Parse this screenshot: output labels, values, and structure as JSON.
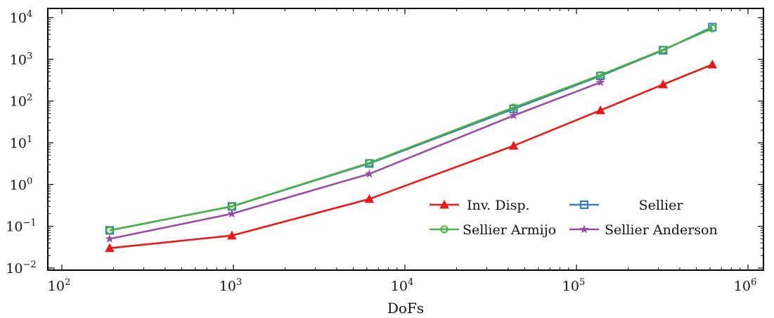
{
  "chart_data": {
    "type": "line",
    "xlabel": "DoFs",
    "ylabel": "",
    "xscale": "log",
    "yscale": "log",
    "xlim": [
      100,
      1000000
    ],
    "ylim": [
      0.01,
      10000
    ],
    "x_ticks": [
      {
        "base": "10",
        "exp": "2"
      },
      {
        "base": "10",
        "exp": "3"
      },
      {
        "base": "10",
        "exp": "4"
      },
      {
        "base": "10",
        "exp": "5"
      },
      {
        "base": "10",
        "exp": "6"
      }
    ],
    "y_ticks": [
      {
        "base": "10",
        "exp": "−2"
      },
      {
        "base": "10",
        "exp": "−1"
      },
      {
        "base": "10",
        "exp": "0"
      },
      {
        "base": "10",
        "exp": "1"
      },
      {
        "base": "10",
        "exp": "2"
      },
      {
        "base": "10",
        "exp": "3"
      },
      {
        "base": "10",
        "exp": "4"
      }
    ],
    "grid": false,
    "legend_position": "lower-right",
    "series": [
      {
        "name": "Inv. Disp.",
        "color": "#e41a1c",
        "marker": "triangle",
        "x": [
          190,
          980,
          6200,
          43000,
          138000,
          320000,
          620000
        ],
        "y": [
          0.03,
          0.06,
          0.45,
          8.5,
          60,
          250,
          750
        ]
      },
      {
        "name": "Sellier",
        "color": "#377eb8",
        "marker": "square",
        "x": [
          190,
          980,
          6200,
          43000,
          138000,
          320000,
          620000
        ],
        "y": [
          0.08,
          0.3,
          3.2,
          65,
          400,
          1650,
          5900
        ]
      },
      {
        "name": "Sellier Armijo",
        "color": "#4daf4a",
        "marker": "circle",
        "x": [
          190,
          980,
          6200,
          43000,
          138000,
          320000,
          620000
        ],
        "y": [
          0.08,
          0.3,
          3.3,
          70,
          420,
          1700,
          5500
        ]
      },
      {
        "name": "Sellier Anderson",
        "color": "#984ea3",
        "marker": "star",
        "x": [
          190,
          980,
          6200,
          43000,
          138000
        ],
        "y": [
          0.05,
          0.2,
          1.8,
          45,
          280
        ]
      }
    ]
  }
}
